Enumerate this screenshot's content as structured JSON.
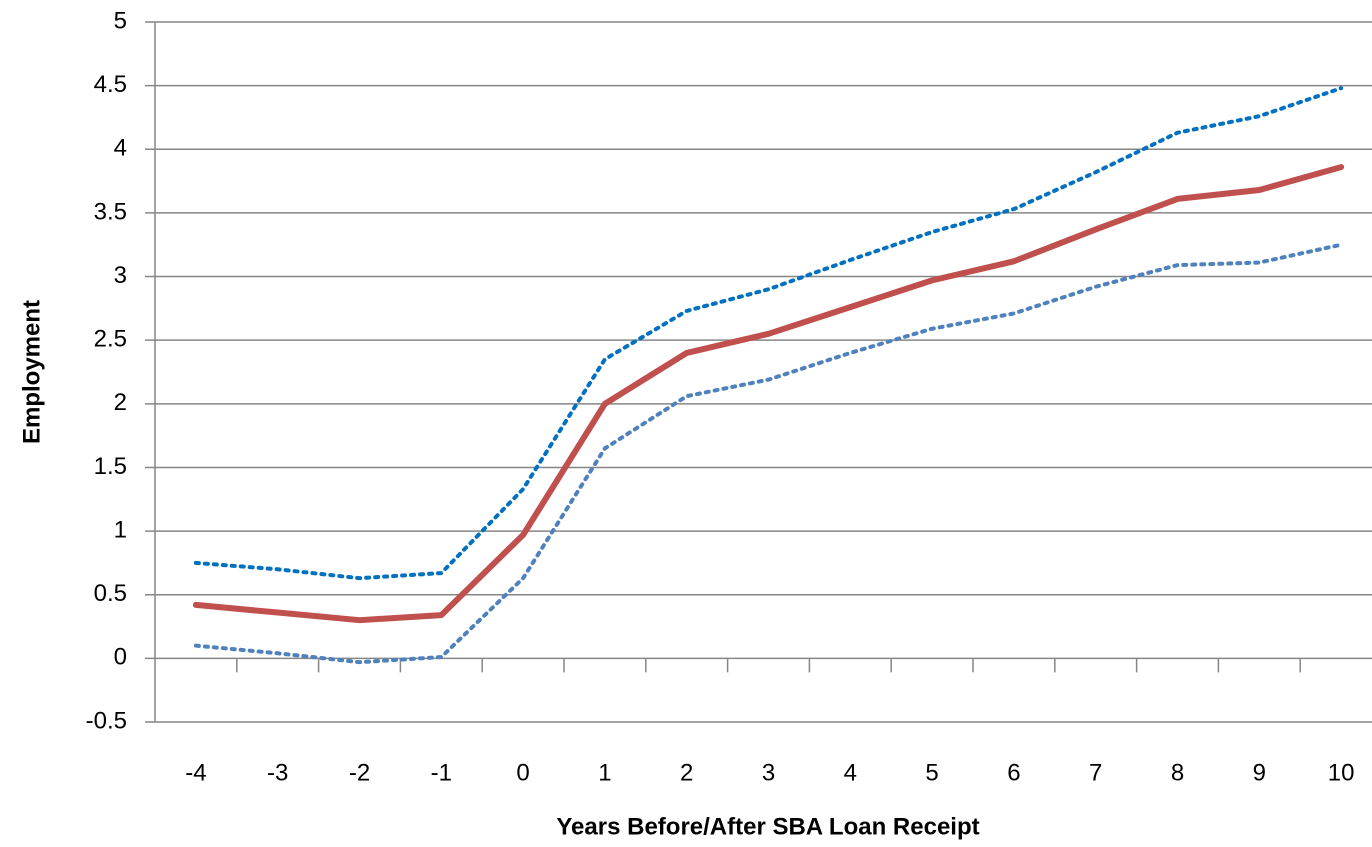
{
  "chart_data": {
    "type": "line",
    "x_label": "Years Before/After SBA Loan Receipt",
    "y_label": "Employment",
    "categories": [
      "-4",
      "-3",
      "-2",
      "-1",
      "0",
      "1",
      "2",
      "3",
      "4",
      "5",
      "6",
      "7",
      "8",
      "9",
      "10"
    ],
    "series": [
      {
        "color": "#0070c0",
        "style": "dotted",
        "values": [
          0.75,
          0.7,
          0.63,
          0.67,
          1.33,
          2.35,
          2.73,
          2.9,
          3.13,
          3.35,
          3.53,
          3.82,
          4.13,
          4.26,
          4.48
        ]
      },
      {
        "color": "#4f81bd",
        "style": "dotted",
        "values": [
          0.1,
          0.04,
          -0.03,
          0.01,
          0.63,
          1.65,
          2.06,
          2.19,
          2.4,
          2.59,
          2.71,
          2.92,
          3.09,
          3.11,
          3.25
        ]
      },
      {
        "color": "#c0504d",
        "style": "solid",
        "values": [
          0.42,
          0.36,
          0.3,
          0.34,
          0.97,
          2.0,
          2.4,
          2.55,
          2.76,
          2.97,
          3.12,
          3.37,
          3.61,
          3.68,
          3.86
        ]
      }
    ],
    "ylim": [
      -0.5,
      5
    ],
    "yticks": [
      -0.5,
      0,
      0.5,
      1,
      1.5,
      2,
      2.5,
      3,
      3.5,
      4,
      4.5,
      5
    ],
    "grid": true
  }
}
